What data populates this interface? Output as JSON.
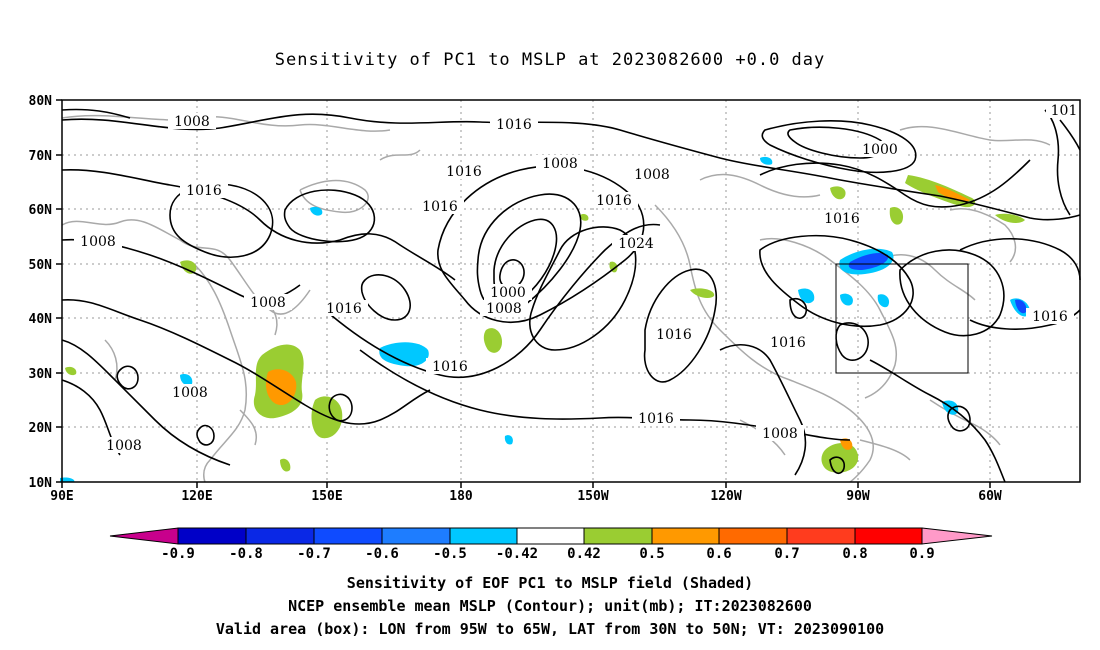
{
  "title": "Sensitivity of PC1 to MSLP at 2023082600 +0.0 day",
  "map": {
    "lat_ticks": [
      "80N",
      "70N",
      "60N",
      "50N",
      "40N",
      "30N",
      "20N",
      "10N"
    ],
    "lon_ticks": [
      "90E",
      "120E",
      "150E",
      "180",
      "150W",
      "120W",
      "90W",
      "60W"
    ],
    "valid_box": {
      "lon_range": [
        "95W",
        "65W"
      ],
      "lat_range": [
        "30N",
        "50N"
      ]
    },
    "contour_labels": [
      "1008",
      "1008",
      "1008",
      "1008",
      "1008",
      "1008",
      "1008",
      "1008",
      "1008",
      "1000",
      "1000",
      "1016",
      "1016",
      "1016",
      "1016",
      "1016",
      "1016",
      "1016",
      "1016",
      "1016",
      "1016",
      "1016",
      "1016",
      "1024",
      "101"
    ],
    "colors": {
      "land_outline": "#a9a9a9",
      "contour": "#000000",
      "grid": "#9a9a9a"
    }
  },
  "colorbar": {
    "labels": [
      "-0.9",
      "-0.8",
      "-0.7",
      "-0.6",
      "-0.5",
      "-0.42",
      "0.42",
      "0.5",
      "0.6",
      "0.7",
      "0.8",
      "0.9"
    ],
    "colors": [
      "#c8008c",
      "#0000c8",
      "#0a28e6",
      "#0f4bff",
      "#1e7dff",
      "#2896ff",
      "#00c8ff",
      "#ffffff",
      "#9acd32",
      "#ff9900",
      "#ff6a00",
      "#ff3c1e",
      "#ff0000",
      "#ff9ac8"
    ]
  },
  "captions": {
    "line1": "Sensitivity of EOF PC1 to MSLP field (Shaded)",
    "line2": "NCEP ensemble mean MSLP (Contour); unit(mb); IT:2023082600",
    "line3": "Valid area (box): LON from 95W to 65W, LAT from 30N to 50N; VT: 2023090100"
  }
}
